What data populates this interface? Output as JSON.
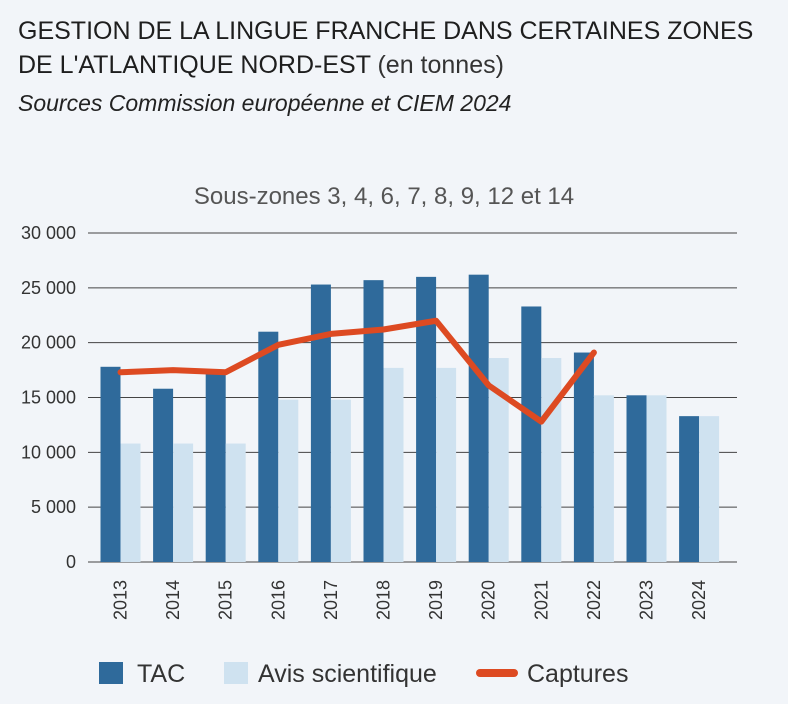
{
  "header": {
    "title": "GESTION DE LA LINGUE FRANCHE DANS CERTAINES ZONES DE L'ATLANTIQUE NORD-EST",
    "title_unit": "(en tonnes)",
    "subtitle": "Sources Commission européenne et CIEM 2024"
  },
  "colors": {
    "tac": "#2f6a9b",
    "avis": "#cfe2f0",
    "captures": "#dd4a22",
    "grid": "#444444",
    "background": "#f2f5f9"
  },
  "chart_data": {
    "type": "bar",
    "title": "Sous-zones 3, 4, 6, 7, 8, 9, 12 et 14",
    "xlabel": "",
    "ylabel": "",
    "ylim": [
      0,
      30000
    ],
    "yticks": [
      0,
      5000,
      10000,
      15000,
      20000,
      25000,
      30000
    ],
    "ytick_labels": [
      "0",
      "5 000",
      "10 000",
      "15 000",
      "20 000",
      "25 000",
      "30 000"
    ],
    "categories": [
      "2013",
      "2014",
      "2015",
      "2016",
      "2017",
      "2018",
      "2019",
      "2020",
      "2021",
      "2022",
      "2023",
      "2024"
    ],
    "series": [
      {
        "name": "TAC",
        "kind": "bar",
        "values": [
          17800,
          15800,
          17200,
          21000,
          25300,
          25700,
          26000,
          26200,
          23300,
          19100,
          15200,
          13300
        ]
      },
      {
        "name": "Avis scientifique",
        "kind": "bar",
        "values": [
          10800,
          10800,
          10800,
          14800,
          14800,
          17700,
          17700,
          18600,
          18600,
          15200,
          15200,
          13300
        ]
      },
      {
        "name": "Captures",
        "kind": "line",
        "values": [
          17300,
          17500,
          17300,
          19800,
          20800,
          21200,
          22000,
          16100,
          12800,
          19100,
          null,
          null
        ]
      }
    ],
    "grid": true,
    "legend": "bottom"
  }
}
